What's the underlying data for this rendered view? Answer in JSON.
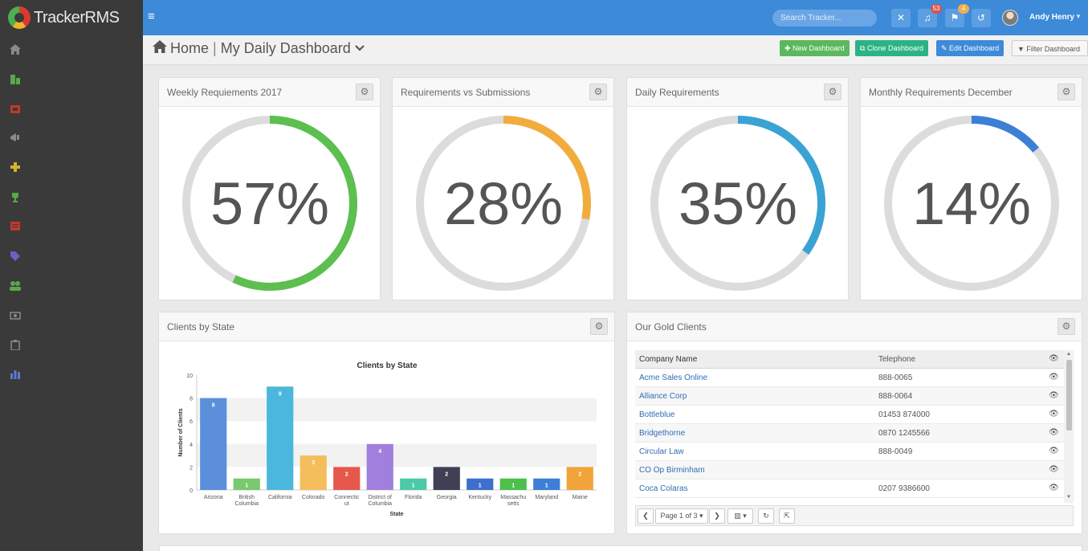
{
  "app": {
    "logo_text": "TrackerRMS"
  },
  "topbar": {
    "search_placeholder": "Search Tracker...",
    "notifications_count": "53",
    "flags_count": "4",
    "user_name": "Andy Henry"
  },
  "header": {
    "home_label": "Home",
    "page_title": "My Daily Dashboard",
    "buttons": {
      "new_dashboard": "New Dashboard",
      "clone_dashboard": "Clone Dashboard",
      "edit_dashboard": "Edit Dashboard",
      "filter_dashboard": "Filter Dashboard"
    }
  },
  "sidebar": {
    "icons": [
      {
        "name": "home-icon",
        "color": "#8a8a8a"
      },
      {
        "name": "building-icon",
        "color": "#5aa84a"
      },
      {
        "name": "briefcase-icon",
        "color": "#c0392b"
      },
      {
        "name": "megaphone-icon",
        "color": "#8a8a8a"
      },
      {
        "name": "puzzle-icon",
        "color": "#d4b22c"
      },
      {
        "name": "trophy-icon",
        "color": "#5aa84a"
      },
      {
        "name": "list-icon",
        "color": "#c0392b"
      },
      {
        "name": "tag-icon",
        "color": "#6c5fc7"
      },
      {
        "name": "users-icon",
        "color": "#5aa84a"
      },
      {
        "name": "money-icon",
        "color": "#8a8a8a"
      },
      {
        "name": "clipboard-icon",
        "color": "#8a8a8a"
      },
      {
        "name": "bar-chart-icon",
        "color": "#5b7bd5"
      }
    ]
  },
  "gauges": [
    {
      "title": "Weekly Requiements 2017",
      "value_label": "57%",
      "percent": 57,
      "color": "#5cbf4f"
    },
    {
      "title": "Requirements vs Submissions",
      "value_label": "28%",
      "percent": 28,
      "color": "#f0ad3e"
    },
    {
      "title": "Daily Requirements",
      "value_label": "35%",
      "percent": 35,
      "color": "#3aa3d4"
    },
    {
      "title": "Monthly Requirements December",
      "value_label": "14%",
      "percent": 14,
      "color": "#3e7fd6"
    }
  ],
  "clients_panel": {
    "title": "Clients by State"
  },
  "chart_data": {
    "type": "bar",
    "title": "Clients by State",
    "xlabel": "State",
    "ylabel": "Number of Clients",
    "ylim": [
      0,
      10
    ],
    "yticks": [
      "0",
      "2",
      "4",
      "6",
      "8",
      "10"
    ],
    "categories": [
      "Arizona",
      "British Columbia",
      "California",
      "Colorado",
      "Connecticut",
      "District of Columbia",
      "Florida",
      "Georgia",
      "Kentucky",
      "Massachusetts",
      "Maryland",
      "Maine"
    ],
    "category_lines": [
      [
        "Arizona"
      ],
      [
        "British",
        "Columbia"
      ],
      [
        "California"
      ],
      [
        "Colorado"
      ],
      [
        "Connectic",
        "ut"
      ],
      [
        "District of",
        "Columbia"
      ],
      [
        "Florida"
      ],
      [
        "Georgia"
      ],
      [
        "Kentucky"
      ],
      [
        "Massachu",
        "setts"
      ],
      [
        "Maryland"
      ],
      [
        "Maine"
      ]
    ],
    "values": [
      8,
      1,
      9,
      3,
      2,
      4,
      1,
      2,
      1,
      1,
      1,
      2
    ],
    "value_labels": [
      "8",
      "1",
      "9",
      "3",
      "2",
      "4",
      "1",
      "2",
      "1",
      "1",
      "1",
      "2"
    ],
    "colors": [
      "#5b8fdb",
      "#79c96d",
      "#4bb7dd",
      "#f4bf5b",
      "#e6574c",
      "#a17fdc",
      "#4cc9a6",
      "#3f3f55",
      "#3d6fcf",
      "#4cc04b",
      "#3d7fd6",
      "#f1a439"
    ],
    "grid": true
  },
  "gold_clients": {
    "title": "Our Gold Clients",
    "columns": [
      "Company Name",
      "Telephone"
    ],
    "rows": [
      {
        "company": "Acme Sales Online",
        "telephone": "888-0065"
      },
      {
        "company": "Alliance Corp",
        "telephone": "888-0064"
      },
      {
        "company": "Bottleblue",
        "telephone": "01453 874000"
      },
      {
        "company": "Bridgethorne",
        "telephone": "0870 1245566"
      },
      {
        "company": "Circular Law",
        "telephone": "888-0049"
      },
      {
        "company": "CO Op Birminham",
        "telephone": ""
      },
      {
        "company": "Coca Colaras",
        "telephone": "0207 9386600"
      }
    ],
    "pager_label": "Page 1 of 3"
  }
}
